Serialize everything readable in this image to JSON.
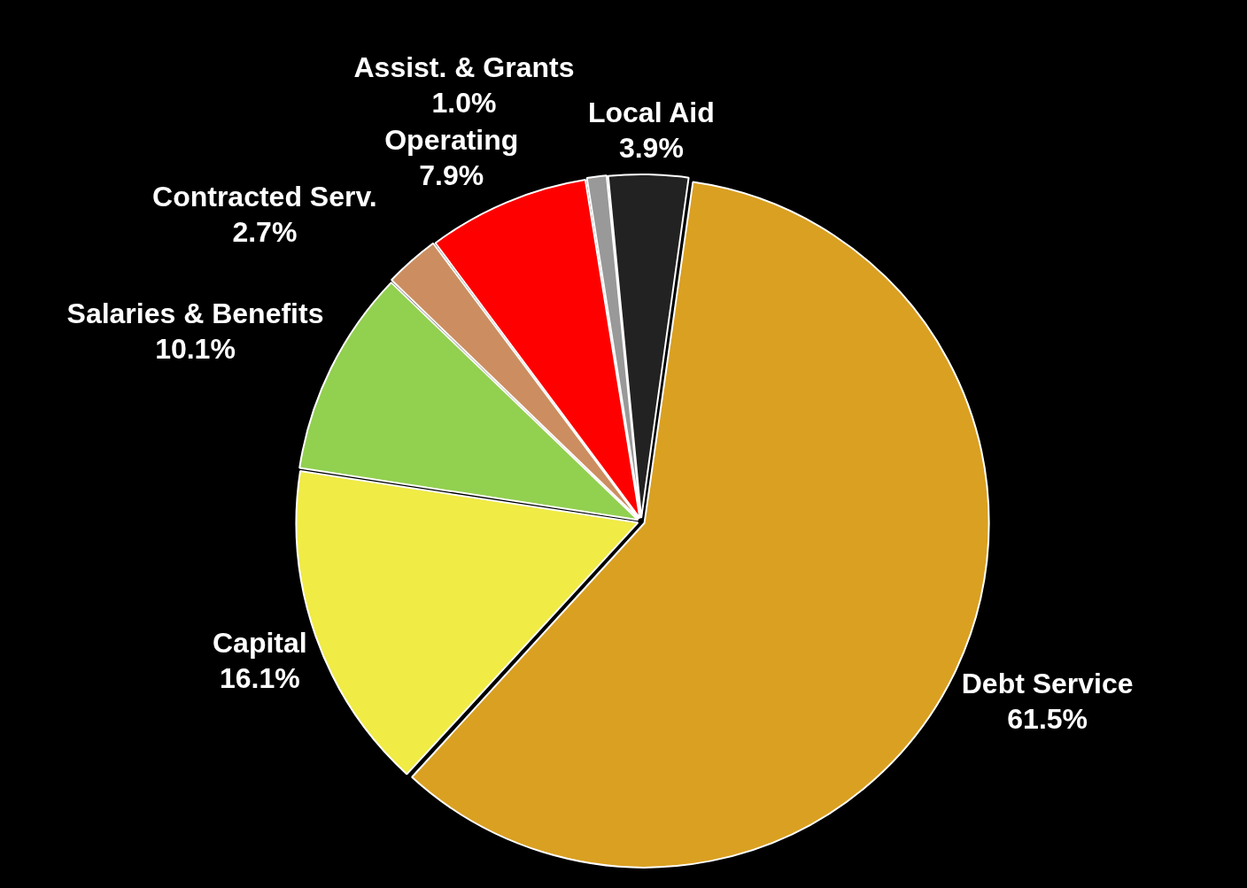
{
  "chart_data": {
    "type": "pie",
    "categories": [
      "Debt Service",
      "Capital",
      "Salaries & Benefits",
      "Contracted Serv.",
      "Operating",
      "Assist. & Grants",
      "Local Aid"
    ],
    "values": [
      61.5,
      16.1,
      10.1,
      2.7,
      7.9,
      1.0,
      3.9
    ],
    "value_labels": [
      "61.5%",
      "16.1%",
      "10.1%",
      "2.7%",
      "7.9%",
      "1.0%",
      "3.9%"
    ],
    "colors": [
      "#daa021",
      "#f0eb45",
      "#92d050",
      "#cc8e60",
      "#ff0000",
      "#999999",
      "#222222"
    ],
    "legend": false
  }
}
